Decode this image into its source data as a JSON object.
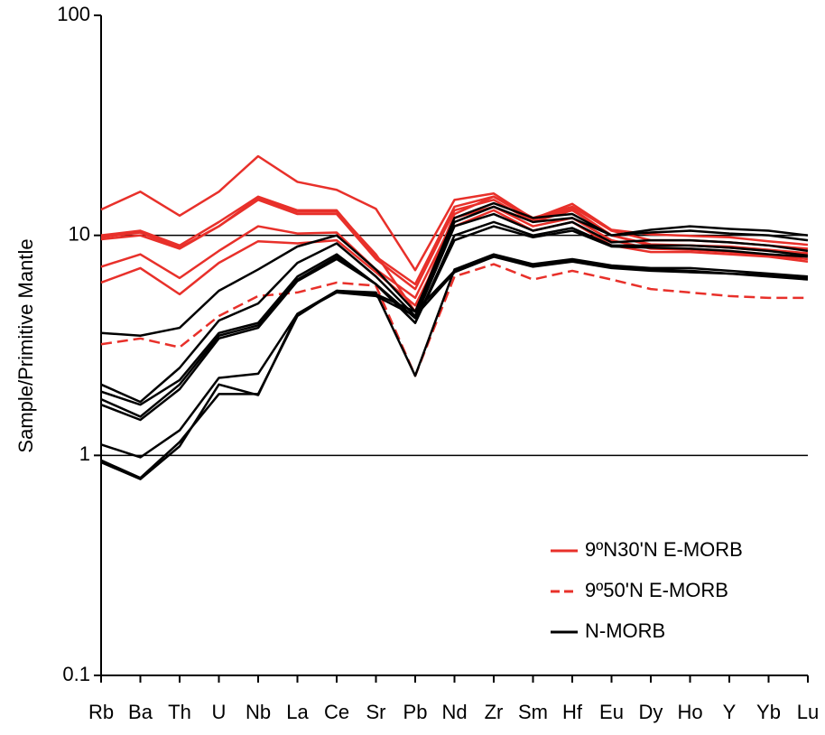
{
  "chart_data": {
    "type": "spider",
    "y_label": "Sample/Primitive Mantle",
    "log_scale": true,
    "ylim": [
      0.1,
      100
    ],
    "yticks": [
      0.1,
      1,
      10,
      100
    ],
    "grid": true,
    "legend": "lower right",
    "categories": [
      "Rb",
      "Ba",
      "Th",
      "U",
      "Nb",
      "La",
      "Ce",
      "Sr",
      "Pb",
      "Nd",
      "Zr",
      "Sm",
      "Hf",
      "Eu",
      "Dy",
      "Ho",
      "Y",
      "Yb",
      "Lu"
    ],
    "series": [
      {
        "name": "9ºN30'N E-MORB",
        "color": "#e8302a",
        "dashed": false,
        "lines": [
          [
            13.1,
            15.8,
            12.3,
            15.8,
            22.9,
            17.5,
            16.1,
            13.2,
            6.95,
            14.5,
            15.5,
            11.9,
            13.9,
            10.6,
            10.1,
            9.95,
            9.8,
            9.4,
            9.06
          ],
          [
            10,
            10.5,
            9,
            11.5,
            15,
            13,
            13,
            8,
            6,
            13.5,
            15,
            12,
            13.5,
            10.5,
            9.5,
            9.5,
            9.3,
            9,
            8.7
          ],
          [
            9.8,
            10.3,
            8.8,
            11,
            14.5,
            12.5,
            12.5,
            7.8,
            5.7,
            13,
            14.5,
            11.5,
            13,
            10,
            9,
            9,
            8.8,
            8.5,
            8.2
          ],
          [
            7.2,
            8.2,
            6.4,
            8.5,
            11,
            10.2,
            10.3,
            7,
            5.2,
            12,
            13.5,
            11,
            12,
            9.5,
            8.7,
            8.6,
            8.4,
            8.1,
            7.8
          ],
          [
            6.1,
            7.1,
            5.4,
            7.5,
            9.4,
            9.2,
            9.5,
            6.8,
            4.8,
            11,
            13,
            10.5,
            11.5,
            9,
            8.4,
            8.4,
            8.2,
            8,
            7.6
          ],
          [
            9.6,
            10,
            8.7,
            11,
            14.8,
            12.8,
            12.8,
            8.2,
            4.5,
            12.5,
            15,
            11.8,
            13.2,
            10,
            9.1,
            9,
            8.9,
            8.6,
            8.3
          ]
        ]
      },
      {
        "name": "9º50'N E-MORB",
        "color": "#e8302a",
        "dashed": true,
        "lines": [
          [
            3.2,
            3.4,
            3.1,
            4.3,
            5.3,
            5.5,
            6.1,
            5.9,
            2.3,
            6.5,
            7.4,
            6.3,
            6.9,
            6.3,
            5.7,
            5.5,
            5.3,
            5.2,
            5.2
          ]
        ]
      },
      {
        "name": "N-MORB",
        "color": "#000000",
        "dashed": false,
        "lines": [
          [
            3.6,
            3.5,
            3.8,
            5.6,
            7,
            8.9,
            10,
            7,
            4.5,
            12,
            14,
            12,
            12.5,
            10,
            10.6,
            11,
            10.7,
            10.5,
            10
          ],
          [
            2.1,
            1.75,
            2.5,
            4.1,
            4.9,
            7.5,
            9.2,
            6.5,
            4.3,
            11.5,
            13.5,
            11.5,
            12,
            10,
            10.3,
            10.5,
            10.2,
            10,
            9.5
          ],
          [
            1.95,
            1.7,
            2.2,
            3.6,
            4,
            6.5,
            8.2,
            6,
            4.2,
            11,
            12.5,
            10.5,
            11.5,
            9.3,
            9.5,
            9.5,
            9.3,
            9,
            8.5
          ],
          [
            1.8,
            1.5,
            2.1,
            3.5,
            3.9,
            6.3,
            8,
            6,
            4,
            10,
            11.5,
            10,
            10.8,
            9,
            9,
            9,
            8.8,
            8.5,
            8.1
          ],
          [
            1.7,
            1.45,
            2,
            3.4,
            3.8,
            6.2,
            7.8,
            6,
            4,
            9.5,
            11,
            9.8,
            10.5,
            8.9,
            8.8,
            8.7,
            8.5,
            8.2,
            8
          ],
          [
            1.12,
            0.98,
            1.3,
            2.25,
            2.35,
            4.4,
            5.6,
            5.5,
            2.3,
            7,
            8.2,
            7.4,
            7.8,
            7.3,
            7.1,
            7.1,
            6.9,
            6.7,
            6.5
          ],
          [
            0.95,
            0.79,
            1.15,
            1.9,
            1.9,
            4.3,
            5.6,
            5.4,
            4.5,
            6.9,
            8,
            7.3,
            7.7,
            7.2,
            7,
            6.9,
            6.7,
            6.6,
            6.4
          ],
          [
            0.93,
            0.78,
            1.1,
            2.1,
            1.88,
            4.4,
            5.5,
            5.3,
            4.3,
            6.8,
            8,
            7.2,
            7.6,
            7.1,
            6.9,
            6.8,
            6.7,
            6.5,
            6.3
          ]
        ]
      }
    ]
  }
}
